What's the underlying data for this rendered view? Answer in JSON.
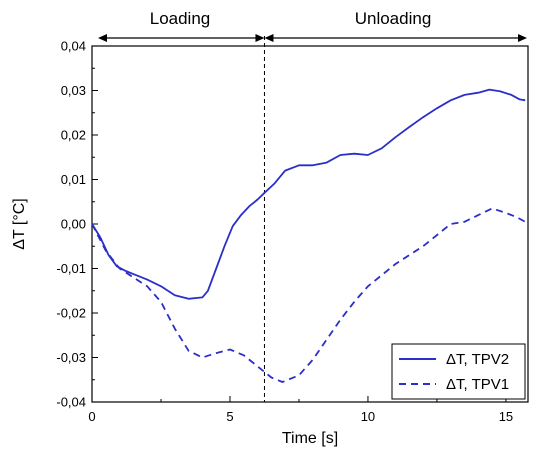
{
  "chart_data": {
    "type": "line",
    "title": "",
    "xlabel": "Time [s]",
    "ylabel": "ΔT [°C]",
    "xlim": [
      0,
      15.8
    ],
    "ylim": [
      -0.04,
      0.04
    ],
    "x_ticks": [
      0,
      5,
      10,
      15
    ],
    "x_tick_labels": [
      "0",
      "5",
      "10",
      "15"
    ],
    "y_ticks": [
      -0.04,
      -0.03,
      -0.02,
      -0.01,
      0.0,
      0.01,
      0.02,
      0.03,
      0.04
    ],
    "y_tick_labels": [
      "-0,04",
      "-0,03",
      "-0,02",
      "-0,01",
      "0,00",
      "0,01",
      "0,02",
      "0,03",
      "0,04"
    ],
    "grid": false,
    "legend_position": "bottom-right",
    "phase_boundary_x": 6.25,
    "phases": [
      {
        "label": "Loading",
        "x_start": 0,
        "x_end": 6.25
      },
      {
        "label": "Unloading",
        "x_start": 6.25,
        "x_end": 15.8
      }
    ],
    "colors": {
      "series": "#2b2fc8",
      "axis": "#000000",
      "divider": "#000000"
    },
    "series": [
      {
        "name": "ΔT, TPV2",
        "style": "solid",
        "x": [
          0,
          0.3,
          0.6,
          0.9,
          1.2,
          1.6,
          2.0,
          2.5,
          3.0,
          3.5,
          4.0,
          4.2,
          4.5,
          4.8,
          5.1,
          5.4,
          5.7,
          6.0,
          6.25,
          6.6,
          7.0,
          7.5,
          8.0,
          8.5,
          9.0,
          9.5,
          10.0,
          10.5,
          11.0,
          11.5,
          12.0,
          12.5,
          13.0,
          13.5,
          14.0,
          14.4,
          14.8,
          15.2,
          15.5,
          15.7
        ],
        "y": [
          0.0,
          -0.003,
          -0.007,
          -0.0095,
          -0.0105,
          -0.0115,
          -0.0125,
          -0.014,
          -0.016,
          -0.0168,
          -0.0165,
          -0.015,
          -0.01,
          -0.005,
          -0.0005,
          0.002,
          0.004,
          0.0055,
          0.007,
          0.009,
          0.012,
          0.0132,
          0.0132,
          0.0138,
          0.0155,
          0.0158,
          0.0155,
          0.017,
          0.0195,
          0.0218,
          0.024,
          0.026,
          0.0278,
          0.029,
          0.0295,
          0.0302,
          0.0298,
          0.029,
          0.028,
          0.0278
        ]
      },
      {
        "name": "ΔT, TPV1",
        "style": "dashed",
        "x": [
          0,
          0.5,
          1.0,
          1.5,
          2.0,
          2.5,
          3.0,
          3.5,
          4.0,
          4.5,
          5.0,
          5.5,
          6.0,
          6.5,
          6.9,
          7.5,
          8.0,
          8.5,
          9.0,
          9.5,
          10.0,
          11.0,
          12.0,
          13.0,
          13.5,
          14.0,
          14.5,
          15.0,
          15.4,
          15.7
        ],
        "y": [
          0.0,
          -0.006,
          -0.01,
          -0.012,
          -0.014,
          -0.0175,
          -0.0235,
          -0.0285,
          -0.03,
          -0.029,
          -0.0282,
          -0.0295,
          -0.032,
          -0.0345,
          -0.0355,
          -0.034,
          -0.0305,
          -0.026,
          -0.0215,
          -0.0175,
          -0.014,
          -0.009,
          -0.005,
          0.0,
          0.0005,
          0.002,
          0.0035,
          0.0025,
          0.0015,
          0.0005
        ]
      }
    ]
  }
}
